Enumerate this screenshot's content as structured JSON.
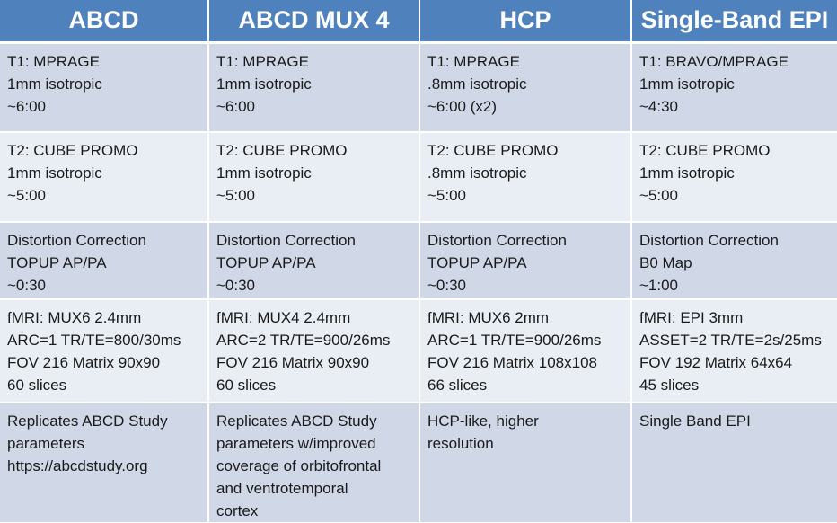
{
  "headers": [
    "ABCD",
    "ABCD MUX 4",
    "HCP",
    "Single-Band EPI"
  ],
  "rows": [
    {
      "name": "t1",
      "cells": [
        [
          "T1: MPRAGE",
          "1mm isotropic",
          "~6:00"
        ],
        [
          "T1: MPRAGE",
          "1mm isotropic",
          "~6:00"
        ],
        [
          "T1: MPRAGE",
          ".8mm isotropic",
          "~6:00 (x2)"
        ],
        [
          "T1: BRAVO/MPRAGE",
          "1mm isotropic",
          "~4:30"
        ]
      ]
    },
    {
      "name": "t2",
      "cells": [
        [
          "T2: CUBE PROMO",
          "1mm isotropic",
          "~5:00"
        ],
        [
          "T2: CUBE PROMO",
          "1mm isotropic",
          "~5:00"
        ],
        [
          "T2: CUBE PROMO",
          ".8mm isotropic",
          "~5:00"
        ],
        [
          "T2: CUBE PROMO",
          "1mm isotropic",
          "~5:00"
        ]
      ]
    },
    {
      "name": "distortion-correction",
      "cells": [
        [
          "Distortion Correction",
          "TOPUP AP/PA",
          "~0:30"
        ],
        [
          "Distortion Correction",
          "TOPUP AP/PA",
          "~0:30"
        ],
        [
          "Distortion Correction",
          "TOPUP AP/PA",
          "~0:30"
        ],
        [
          "Distortion Correction",
          "B0 Map",
          "~1:00"
        ]
      ]
    },
    {
      "name": "fmri",
      "cells": [
        [
          "fMRI: MUX6 2.4mm",
          "ARC=1 TR/TE=800/30ms",
          "FOV 216 Matrix 90x90",
          "60 slices"
        ],
        [
          "fMRI: MUX4 2.4mm",
          "ARC=2 TR/TE=900/26ms",
          "FOV 216 Matrix 90x90",
          "60 slices"
        ],
        [
          "fMRI: MUX6 2mm",
          "ARC=1 TR/TE=900/26ms",
          "FOV 216 Matrix 108x108",
          "66 slices"
        ],
        [
          "fMRI: EPI 3mm",
          "ASSET=2 TR/TE=2s/25ms",
          "FOV 192 Matrix 64x64",
          "45 slices"
        ]
      ]
    },
    {
      "name": "description",
      "cells": [
        [
          "Replicates ABCD Study",
          "parameters",
          "https://abcdstudy.org"
        ],
        [
          "Replicates ABCD Study",
          "parameters w/improved",
          "coverage of orbitofrontal",
          "and ventrotemporal",
          "cortex"
        ],
        [
          "HCP-like, higher",
          "resolution"
        ],
        [
          "Single Band EPI"
        ]
      ]
    }
  ]
}
